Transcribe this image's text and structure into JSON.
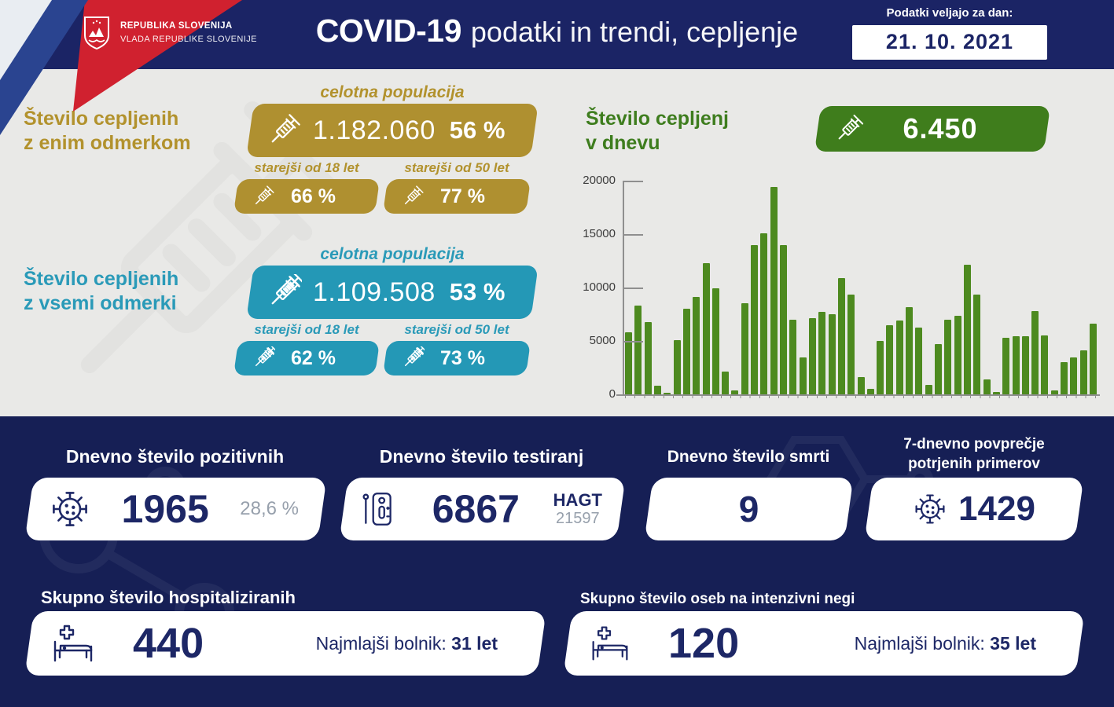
{
  "header": {
    "gov_line1": "REPUBLIKA SLOVENIJA",
    "gov_line2": "VLADA REPUBLIKE SLOVENIJE",
    "title_bold": "COVID-19",
    "title_rest": "podatki in trendi, cepljenje",
    "date_label": "Podatki veljajo za dan:",
    "date_value": "21. 10. 2021"
  },
  "vaccination": {
    "one_dose": {
      "heading_line1": "Število cepljenih",
      "heading_line2": "z enim odmerkom",
      "population_label": "celotna populacija",
      "population_count": "1.182.060",
      "population_pct": "56 %",
      "over18_label": "starejši od 18 let",
      "over18_pct": "66 %",
      "over50_label": "starejši od 50 let",
      "over50_pct": "77 %",
      "color": "#af9030"
    },
    "all_doses": {
      "heading_line1": "Število cepljenih",
      "heading_line2": "z vsemi odmerki",
      "population_label": "celotna populacija",
      "population_count": "1.109.508",
      "population_pct": "53 %",
      "over18_label": "starejši od 18 let",
      "over18_pct": "62 %",
      "over50_label": "starejši od 50 let",
      "over50_pct": "73 %",
      "color": "#2498b6"
    },
    "daily": {
      "heading_line1": "Število cepljenj",
      "heading_line2": "v dnevu",
      "badge_value": "6.450",
      "color": "#3f7d1c"
    }
  },
  "chart_data": {
    "type": "bar",
    "title": "Število cepljenj v dnevu",
    "xlabel": "",
    "ylabel": "",
    "ylim": [
      0,
      20000
    ],
    "yticks": [
      0,
      5000,
      10000,
      15000,
      20000
    ],
    "grid": false,
    "legend": "none",
    "bar_color": "#4d8a1f",
    "values": [
      5800,
      8300,
      6800,
      800,
      150,
      5100,
      8000,
      9150,
      12250,
      9900,
      2100,
      350,
      8500,
      14000,
      15100,
      19400,
      14000,
      7000,
      3450,
      7100,
      7700,
      7500,
      10900,
      9350,
      1600,
      500,
      5000,
      6500,
      6900,
      8150,
      6250,
      900,
      4700,
      6950,
      7350,
      12100,
      9350,
      1400,
      250,
      5300,
      5450,
      5450,
      7800,
      5500,
      350,
      3000,
      3450,
      4150,
      6650
    ]
  },
  "stats": {
    "positive": {
      "title": "Dnevno število pozitivnih",
      "value": "1965",
      "secondary": "28,6 %"
    },
    "tests": {
      "title": "Dnevno število testiranj",
      "value": "6867",
      "secondary_label": "HAGT",
      "secondary_value": "21597"
    },
    "deaths": {
      "title": "Dnevno število smrti",
      "value": "9"
    },
    "avg7": {
      "title_line1": "7-dnevno povprečje",
      "title_line2": "potrjenih primerov",
      "value": "1429"
    }
  },
  "hospital": {
    "hospitalized": {
      "title": "Skupno število hospitaliziranih",
      "value": "440",
      "youngest_label": "Najmlajši bolnik:",
      "youngest_value": "31 let"
    },
    "icu": {
      "title": "Skupno število oseb na intenzivni negi",
      "value": "120",
      "youngest_label": "Najmlajši bolnik:",
      "youngest_value": "35 let"
    }
  },
  "colors": {
    "header_navy": "#1b2465",
    "bottom_navy": "#161f55",
    "light_bg": "#e9e9e7",
    "gold": "#af9030",
    "teal": "#2498b6",
    "green": "#3f7d1c",
    "bar_green": "#4d8a1f",
    "number_navy": "#1d2766",
    "muted_gray": "#97a0ac",
    "flag_red": "#d0212f",
    "flag_blue": "#2a4490"
  }
}
